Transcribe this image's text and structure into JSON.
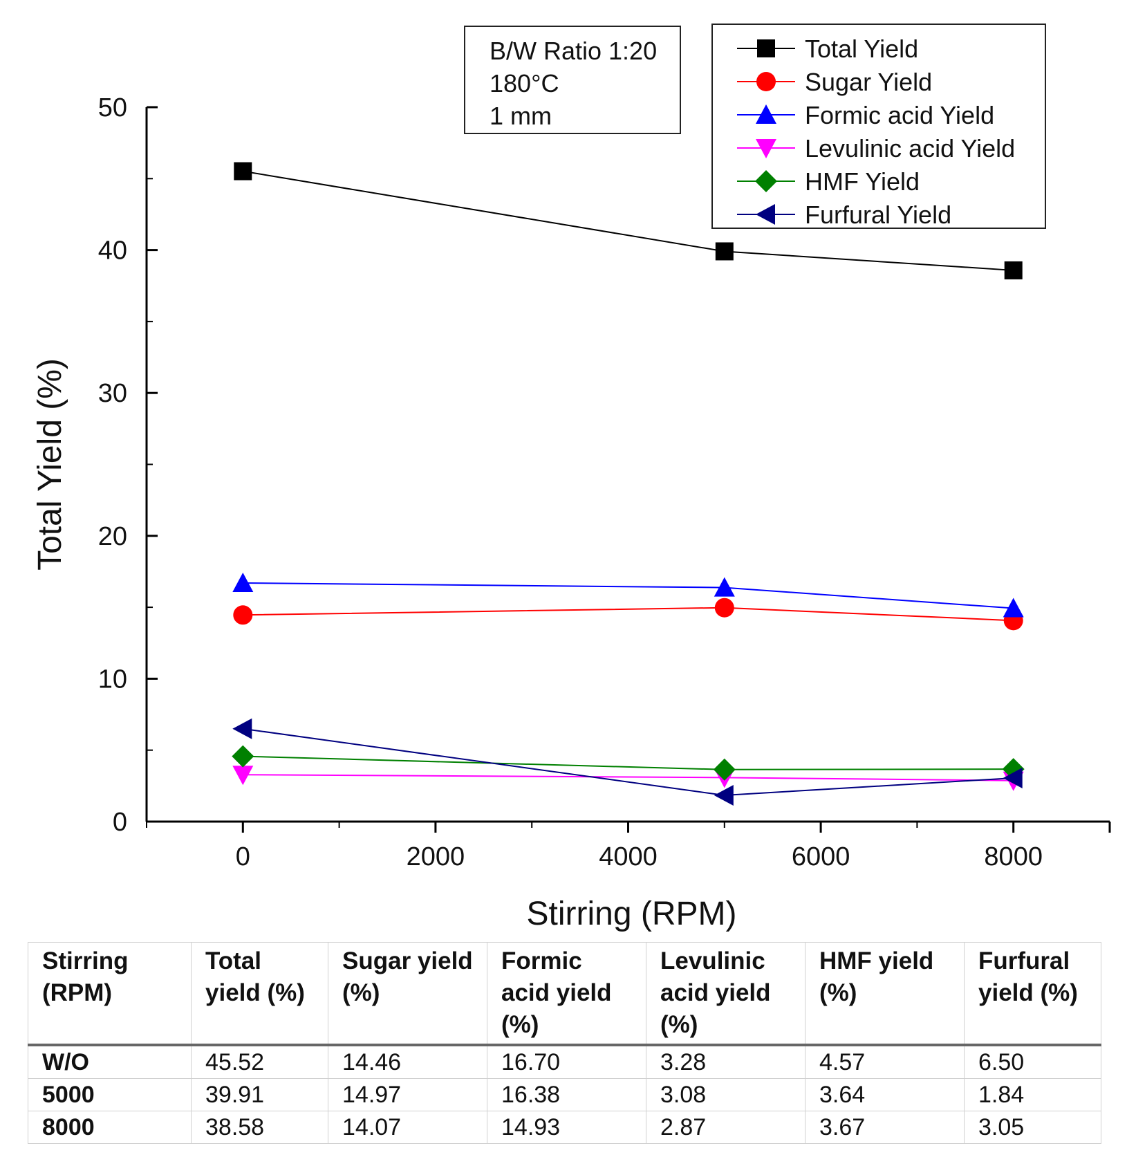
{
  "chart_data": {
    "type": "line",
    "title": "",
    "xlabel": "Stirring (RPM)",
    "ylabel": "Total Yield (%)",
    "xlim": [
      -1000,
      9000
    ],
    "ylim": [
      0,
      50
    ],
    "x_ticks": [
      0,
      2000,
      4000,
      6000,
      8000
    ],
    "y_ticks": [
      0,
      10,
      20,
      30,
      40,
      50
    ],
    "x": [
      0,
      5000,
      8000
    ],
    "legend_position": "top-right",
    "conditions": [
      "B/W Ratio 1:20",
      "180°C",
      "1 mm"
    ],
    "series": [
      {
        "name": "Total Yield",
        "color": "#000000",
        "marker": "square",
        "values": [
          45.52,
          39.91,
          38.58
        ]
      },
      {
        "name": "Sugar Yield",
        "color": "#ff0000",
        "marker": "circle",
        "values": [
          14.46,
          14.97,
          14.07
        ]
      },
      {
        "name": "Formic acid Yield",
        "color": "#0000ff",
        "marker": "triangle-up",
        "values": [
          16.7,
          16.38,
          14.93
        ]
      },
      {
        "name": "Levulinic acid Yield",
        "color": "#ff00ff",
        "marker": "triangle-down",
        "values": [
          3.28,
          3.08,
          2.87
        ]
      },
      {
        "name": "HMF Yield",
        "color": "#008000",
        "marker": "diamond",
        "values": [
          4.57,
          3.64,
          3.67
        ]
      },
      {
        "name": "Furfural Yield",
        "color": "#000080",
        "marker": "triangle-left",
        "values": [
          6.5,
          1.84,
          3.05
        ]
      }
    ]
  },
  "table": {
    "headers": [
      "Stirring (RPM)",
      "Total yield (%)",
      "Sugar yield (%)",
      "Formic acid yield (%)",
      "Levulinic acid yield (%)",
      "HMF yield (%)",
      "Furfural yield (%)"
    ],
    "rows": [
      [
        "W/O",
        "45.52",
        "14.46",
        "16.70",
        "3.28",
        "4.57",
        "6.50"
      ],
      [
        "5000",
        "39.91",
        "14.97",
        "16.38",
        "3.08",
        "3.64",
        "1.84"
      ],
      [
        "8000",
        "38.58",
        "14.07",
        "14.93",
        "2.87",
        "3.67",
        "3.05"
      ]
    ]
  }
}
